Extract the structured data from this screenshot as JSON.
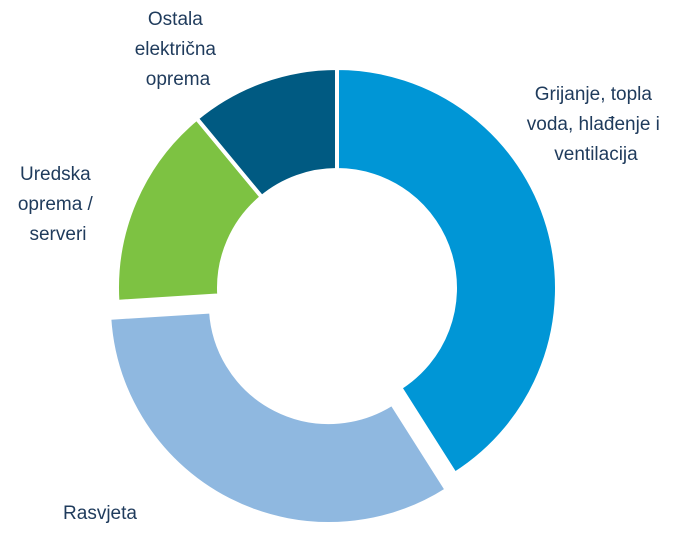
{
  "chart_data": {
    "type": "donut",
    "categories": [
      "Grijanje, topla voda, hlađenje i ventilacija",
      "Rasvjeta",
      "Uredska oprema / serveri",
      "Ostala električna oprema"
    ],
    "values": [
      41,
      33,
      15,
      11
    ],
    "colors": [
      "#0096d6",
      "#8fb8e0",
      "#7dc242",
      "#005a82"
    ],
    "exploded": [
      false,
      true,
      false,
      false
    ]
  }
}
